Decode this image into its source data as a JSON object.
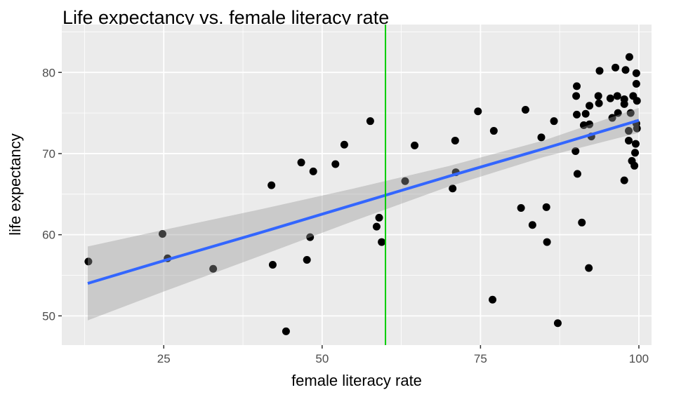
{
  "chart_data": {
    "type": "scatter",
    "title": "Life expectancy vs. female literacy rate",
    "xlabel": "female literacy rate",
    "ylabel": "life expectancy",
    "xlim": [
      8.9,
      102
    ],
    "ylim": [
      46.4,
      85.9
    ],
    "x_ticks": [
      25,
      50,
      75,
      100
    ],
    "x_tick_labels": [
      "25",
      "50",
      "75",
      "100"
    ],
    "y_ticks": [
      50,
      60,
      70,
      80
    ],
    "y_tick_labels": [
      "50",
      "60",
      "70",
      "80"
    ],
    "grid": true,
    "vline": {
      "x": 60,
      "color": "#00CD00"
    },
    "fit": {
      "method": "linear",
      "color": "#3366FF",
      "band_color": "#999999",
      "x": [
        13,
        25,
        40,
        55,
        70,
        85,
        100
      ],
      "y": [
        54.0,
        56.8,
        60.2,
        63.7,
        67.2,
        70.6,
        74.1
      ],
      "lower": [
        49.45,
        53.0,
        57.32,
        61.7,
        65.94,
        69.58,
        72.57
      ],
      "upper": [
        58.55,
        60.6,
        63.08,
        65.7,
        68.46,
        71.62,
        75.63
      ]
    },
    "points": [
      [
        13.1,
        56.7
      ],
      [
        24.8,
        60.1
      ],
      [
        25.6,
        57.1
      ],
      [
        32.8,
        55.8
      ],
      [
        42.0,
        66.1
      ],
      [
        42.2,
        56.3
      ],
      [
        44.3,
        48.1
      ],
      [
        46.7,
        68.9
      ],
      [
        47.6,
        56.9
      ],
      [
        48.1,
        59.7
      ],
      [
        48.6,
        67.8
      ],
      [
        52.1,
        68.7
      ],
      [
        53.5,
        71.1
      ],
      [
        57.6,
        74.0
      ],
      [
        58.6,
        61.0
      ],
      [
        59.0,
        62.1
      ],
      [
        59.4,
        59.1
      ],
      [
        63.1,
        66.6
      ],
      [
        64.6,
        71.0
      ],
      [
        70.6,
        65.7
      ],
      [
        71.0,
        71.6
      ],
      [
        71.1,
        67.7
      ],
      [
        74.6,
        75.2
      ],
      [
        76.9,
        52.0
      ],
      [
        77.1,
        72.8
      ],
      [
        81.4,
        63.3
      ],
      [
        82.1,
        75.4
      ],
      [
        83.2,
        61.2
      ],
      [
        84.6,
        72.0
      ],
      [
        85.4,
        63.4
      ],
      [
        85.5,
        59.1
      ],
      [
        86.6,
        74.0
      ],
      [
        87.2,
        49.1
      ],
      [
        90.2,
        78.3
      ],
      [
        90.1,
        77.1
      ],
      [
        93.8,
        80.2
      ],
      [
        96.3,
        80.6
      ],
      [
        98.5,
        81.9
      ],
      [
        97.9,
        80.3
      ],
      [
        99.6,
        79.9
      ],
      [
        99.6,
        78.6
      ],
      [
        90.2,
        74.8
      ],
      [
        91.6,
        74.9
      ],
      [
        92.2,
        75.9
      ],
      [
        93.6,
        77.1
      ],
      [
        93.7,
        76.2
      ],
      [
        95.5,
        76.8
      ],
      [
        96.6,
        77.1
      ],
      [
        97.7,
        76.7
      ],
      [
        97.7,
        76.1
      ],
      [
        99.1,
        77.1
      ],
      [
        99.7,
        76.5
      ],
      [
        96.7,
        75.0
      ],
      [
        95.8,
        74.4
      ],
      [
        98.7,
        75.0
      ],
      [
        99.6,
        73.7
      ],
      [
        99.7,
        73.1
      ],
      [
        98.4,
        72.8
      ],
      [
        91.3,
        73.5
      ],
      [
        92.2,
        73.6
      ],
      [
        92.5,
        72.1
      ],
      [
        98.4,
        71.6
      ],
      [
        99.5,
        71.2
      ],
      [
        99.4,
        70.1
      ],
      [
        98.9,
        69.1
      ],
      [
        99.3,
        68.5
      ],
      [
        90.0,
        70.3
      ],
      [
        90.3,
        67.5
      ],
      [
        97.7,
        66.7
      ],
      [
        91.0,
        61.5
      ],
      [
        92.1,
        55.9
      ]
    ]
  }
}
